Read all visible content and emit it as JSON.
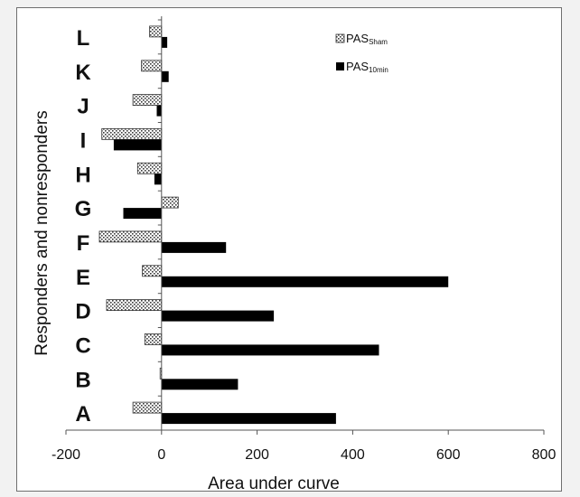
{
  "chart_data": {
    "type": "bar",
    "orientation": "horizontal",
    "xlabel": "Area under curve",
    "ylabel": "Responders and nonresponders",
    "xlim": [
      -200,
      800
    ],
    "xticks": [
      "-200",
      "0",
      "200",
      "400",
      "600",
      "800"
    ],
    "categories": [
      "A",
      "B",
      "C",
      "D",
      "E",
      "F",
      "G",
      "H",
      "I",
      "J",
      "K",
      "L"
    ],
    "series": [
      {
        "name": "PAS",
        "name_sub": "Sham",
        "pattern": "dotted",
        "values": [
          -60,
          -3,
          -35,
          -115,
          -40,
          -130,
          35,
          -50,
          -125,
          -60,
          -42,
          -25
        ]
      },
      {
        "name": "PAS",
        "name_sub": "10min",
        "pattern": "solid",
        "values": [
          365,
          160,
          455,
          235,
          600,
          135,
          -80,
          -15,
          -100,
          -10,
          15,
          12
        ]
      }
    ],
    "grid": false,
    "legend_position": "top-right",
    "colors": {
      "solid": "#000000",
      "dot": "#3a3a3a",
      "axis": "#555555"
    }
  }
}
